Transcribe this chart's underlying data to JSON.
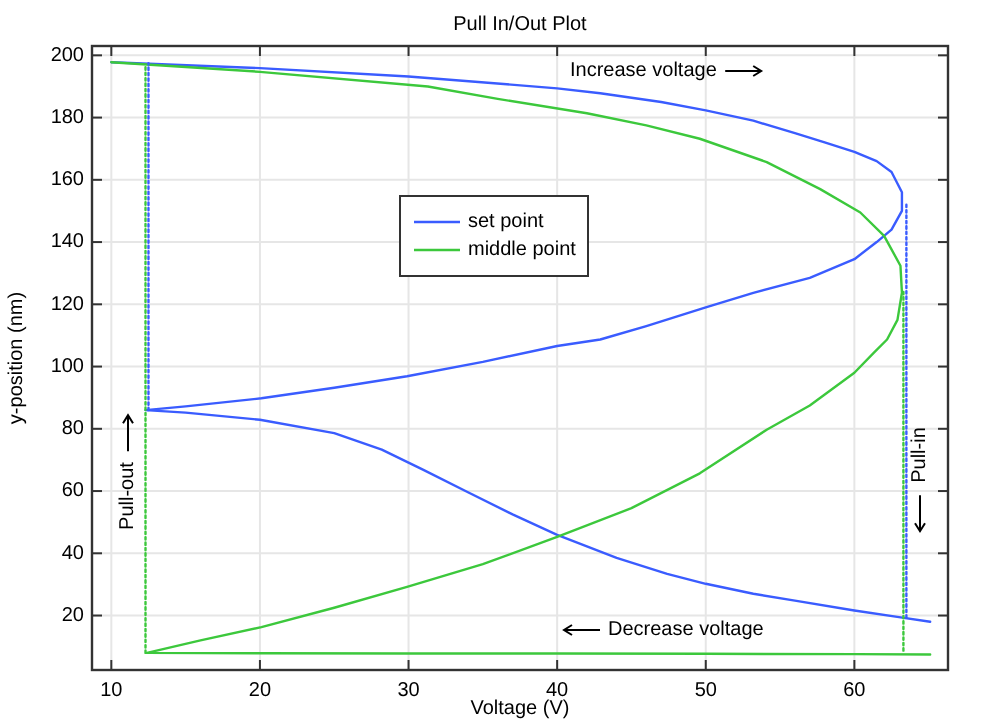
{
  "chart_data": {
    "type": "line",
    "title": "Pull In/Out Plot",
    "xlabel": "Voltage (V)",
    "ylabel": "y-position (nm)",
    "xlim": [
      8.7,
      66.3
    ],
    "ylim": [
      2.5,
      203
    ],
    "xticks": [
      10,
      20,
      30,
      40,
      50,
      60
    ],
    "yticks": [
      20,
      40,
      60,
      80,
      100,
      120,
      140,
      160,
      180,
      200
    ],
    "grid": true,
    "legend": "top",
    "marker": "none",
    "series": [
      {
        "name": "set point",
        "color": "#3a5cff",
        "x": [
          10,
          20,
          30,
          40,
          42.9,
          47,
          50,
          53.2,
          56,
          58,
          60,
          61.5,
          62.5,
          63.2,
          63.2,
          62.5,
          61.5,
          60,
          57,
          53.2,
          50,
          46,
          42.9,
          40,
          35,
          29.9,
          25,
          20.1,
          15,
          12.3,
          15,
          20,
          25,
          28.2,
          31,
          34,
          37,
          40,
          44,
          47.4,
          50,
          53.2,
          56,
          60,
          63,
          65.1
        ],
        "values": [
          197.8,
          195.9,
          193.2,
          189.4,
          187.8,
          185,
          182.3,
          179,
          175,
          172,
          169,
          166,
          162.5,
          156,
          150,
          144,
          140,
          134.5,
          128.5,
          123.7,
          119,
          113,
          108.7,
          106.6,
          101.5,
          96.9,
          93.2,
          89.8,
          87.2,
          86,
          85.2,
          82.9,
          78.6,
          73.3,
          66.8,
          59.6,
          52.5,
          45.9,
          38.5,
          33.4,
          30.2,
          27,
          24.8,
          21.6,
          19.5,
          18
        ]
      },
      {
        "name": "middle point",
        "color": "#3cc83c",
        "x": [
          10,
          20,
          31.3,
          36,
          42,
          46,
          49.6,
          54.1,
          57.7,
          60.4,
          62,
          63.1,
          63.2,
          62.9,
          62.2,
          61.3,
          60,
          57,
          54.1,
          49.6,
          45,
          40,
          35,
          29.9,
          25,
          20.1,
          16,
          12.4,
          20,
          30,
          40,
          50,
          60,
          65.1
        ],
        "values": [
          197.8,
          194.7,
          190,
          186,
          181.4,
          177.5,
          173.2,
          165.7,
          157,
          149.5,
          142,
          132.4,
          123.7,
          115,
          108.7,
          104.4,
          98,
          87.5,
          79.7,
          65.7,
          54.5,
          45.3,
          36.5,
          29.2,
          22.5,
          16.3,
          12,
          8,
          7.9,
          7.8,
          7.8,
          7.7,
          7.6,
          7.5
        ]
      },
      {
        "color": "#3a5cff",
        "line_style": "dotted",
        "x": [
          63.5,
          63.5
        ],
        "values": [
          152,
          19
        ]
      },
      {
        "color": "#3a5cff",
        "line_style": "dotted",
        "x": [
          12.5,
          12.5
        ],
        "values": [
          86,
          197.5
        ]
      },
      {
        "color": "#3cc83c",
        "line_style": "dotted",
        "x": [
          63.3,
          63.3
        ],
        "values": [
          124,
          8
        ]
      },
      {
        "color": "#3cc83c",
        "line_style": "dotted",
        "x": [
          12.3,
          12.3
        ],
        "values": [
          8,
          197
        ]
      }
    ],
    "annotations": [
      "Increase voltage",
      "Decrease voltage",
      "Pull-out",
      "Pull-in"
    ]
  }
}
